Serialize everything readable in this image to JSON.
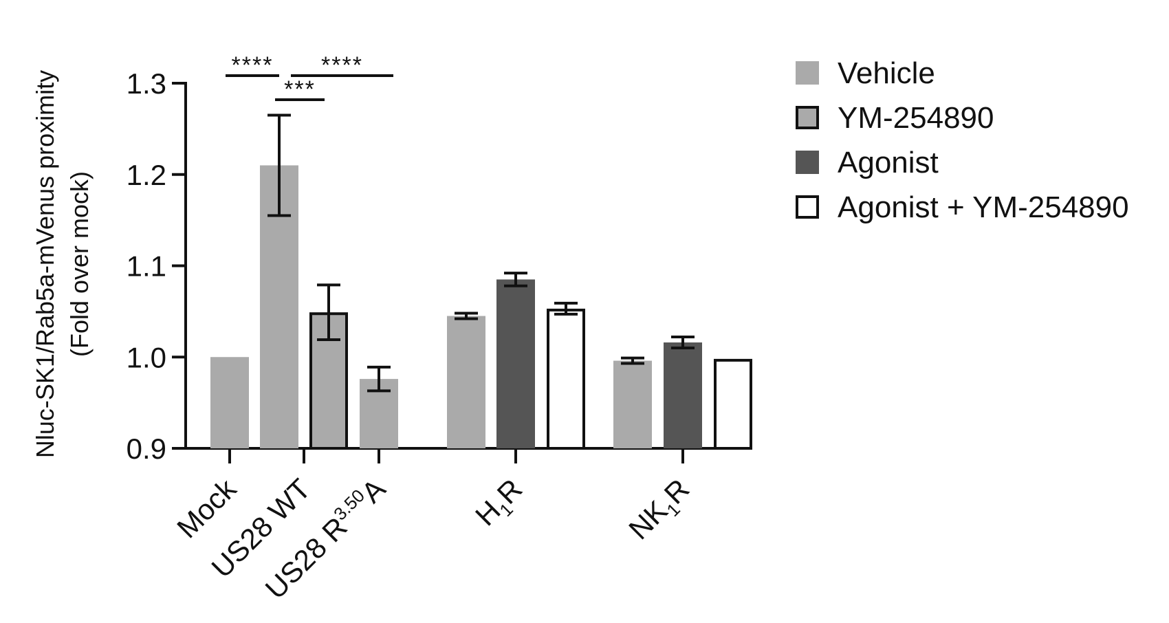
{
  "chart_data": {
    "type": "bar",
    "ylabel_line1": "Nluc-SK1/Rab5a-mVenus proximity",
    "ylabel_line2": "(Fold over mock)",
    "ylim": [
      0.9,
      1.3
    ],
    "yticks": [
      "0.9",
      "1.0",
      "1.1",
      "1.2",
      "1.3"
    ],
    "groups": [
      {
        "label": "Mock",
        "sup": "",
        "sub": "",
        "suffix": ""
      },
      {
        "label": "US28 WT",
        "sup": "",
        "sub": "",
        "suffix": ""
      },
      {
        "label": "US28 R",
        "sup": "3.50",
        "sub": "",
        "suffix": "A"
      },
      {
        "label": "H",
        "sup": "",
        "sub": "1",
        "suffix": "R"
      },
      {
        "label": "NK",
        "sup": "",
        "sub": "1",
        "suffix": "R"
      }
    ],
    "series": [
      {
        "name": "Vehicle",
        "color": "#aaaaaa",
        "outlined": false
      },
      {
        "name": "YM-254890",
        "color": "#aaaaaa",
        "outlined": true
      },
      {
        "name": "Agonist",
        "color": "#555555",
        "outlined": false
      },
      {
        "name": "Agonist + YM-254890",
        "color": "#ffffff",
        "outlined": true
      }
    ],
    "bars": [
      {
        "group": 0,
        "series": 0,
        "value": 1.0,
        "err": null
      },
      {
        "group": 1,
        "series": 0,
        "value": 1.21,
        "err": 0.055
      },
      {
        "group": 1,
        "series": 1,
        "value": 1.049,
        "err": 0.03
      },
      {
        "group": 2,
        "series": 0,
        "value": 0.976,
        "err": 0.013
      },
      {
        "group": 3,
        "series": 0,
        "value": 1.045,
        "err": 0.003
      },
      {
        "group": 3,
        "series": 2,
        "value": 1.085,
        "err": 0.007
      },
      {
        "group": 3,
        "series": 3,
        "value": 1.053,
        "err": 0.006
      },
      {
        "group": 4,
        "series": 0,
        "value": 0.996,
        "err": 0.003
      },
      {
        "group": 4,
        "series": 2,
        "value": 1.016,
        "err": 0.006
      },
      {
        "group": 4,
        "series": 3,
        "value": 0.998,
        "err": null
      }
    ],
    "significance": [
      {
        "from_bar": 0,
        "to_bar": 1,
        "label": "****"
      },
      {
        "from_bar": 1,
        "to_bar": 2,
        "label": "***"
      },
      {
        "from_bar": 1,
        "to_bar": 3,
        "label": "****"
      }
    ]
  }
}
